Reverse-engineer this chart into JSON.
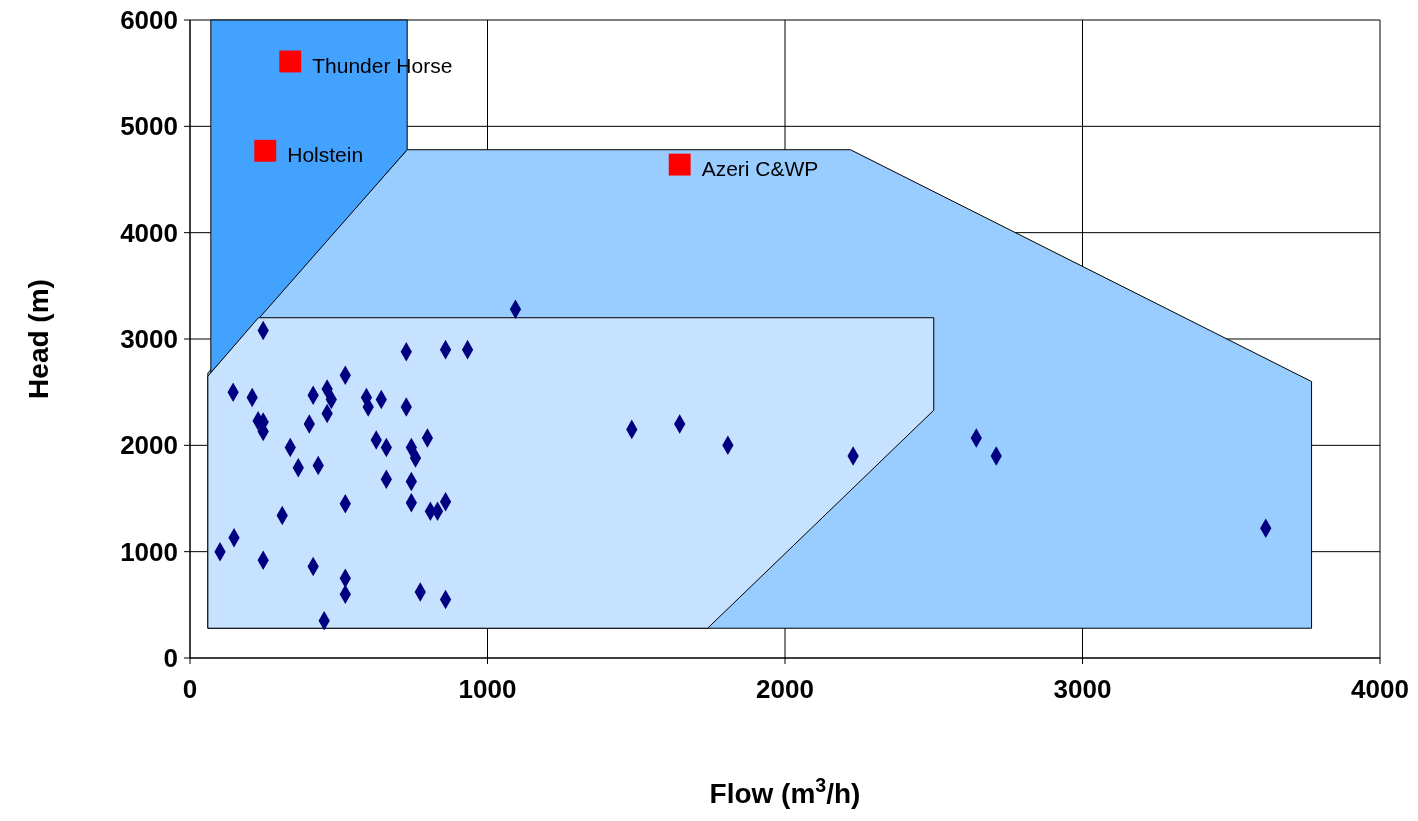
{
  "chart_data": {
    "type": "scatter",
    "xlabel": "Flow (m$^{3}$/h)",
    "ylabel": "Head (m)",
    "xlim": [
      0,
      4000
    ],
    "xticks": [
      0,
      1000,
      2000,
      3000,
      4000
    ],
    "ylim": [
      0,
      6000
    ],
    "yticks": [
      0,
      1000,
      2000,
      3000,
      4000,
      5000,
      6000
    ],
    "grid": true,
    "series": [
      {
        "type": "area",
        "color": "#99ccff",
        "x": [
          60,
          60,
          730,
          2220,
          3770,
          3770
        ],
        "values": [
          280,
          2680,
          4780,
          4780,
          2600,
          280
        ]
      },
      {
        "type": "area",
        "color": "#44a2ff",
        "x": [
          70,
          70,
          730,
          730
        ],
        "values": [
          2680,
          6000,
          6000,
          4780
        ]
      },
      {
        "type": "area",
        "color": "#c6e2ff",
        "x": [
          60,
          60,
          230,
          2500,
          2500,
          1740
        ],
        "values": [
          280,
          2650,
          3200,
          3200,
          2330,
          280
        ]
      },
      {
        "marker": "diamond",
        "color": "#000080",
        "x": [
          246,
          1094,
          145,
          209,
          229,
          246,
          246,
          337,
          364,
          414,
          401,
          461,
          475,
          461,
          522,
          431,
          593,
          599,
          643,
          626,
          660,
          660,
          522,
          310,
          101,
          148,
          246,
          414,
          522,
          522,
          451,
          727,
          727,
          744,
          758,
          798,
          744,
          744,
          808,
          832,
          859,
          774,
          859,
          859,
          933,
          1485,
          1646,
          1808,
          2229,
          2643,
          2710,
          3616
        ],
        "values": [
          3080,
          3280,
          2500,
          2450,
          2230,
          2220,
          2130,
          1980,
          1790,
          2470,
          2200,
          2530,
          2430,
          2300,
          2660,
          1810,
          2450,
          2360,
          2430,
          2050,
          1980,
          1680,
          1450,
          1340,
          1000,
          1130,
          920,
          860,
          750,
          600,
          350,
          2880,
          2360,
          1980,
          1880,
          2070,
          1660,
          1460,
          1380,
          1380,
          1470,
          620,
          550,
          2900,
          2900,
          2150,
          2200,
          2000,
          1900,
          2070,
          1900,
          1220
        ]
      },
      {
        "marker": "square",
        "color": "#ff0000",
        "x": [
          337,
          253,
          1646
        ],
        "values": [
          5610,
          4770,
          4640
        ]
      }
    ],
    "annotations": [
      {
        "text": "Thunder Horse",
        "x": 337,
        "y": 5610
      },
      {
        "text": "Holstein",
        "x": 253,
        "y": 4770
      },
      {
        "text": "Azeri C&WP",
        "x": 1646,
        "y": 4640
      }
    ]
  }
}
